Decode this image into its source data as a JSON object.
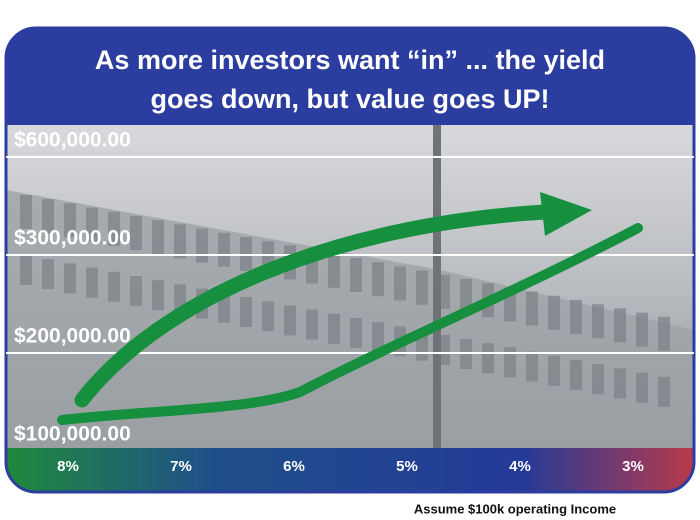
{
  "header": {
    "title_lines": [
      "As more investors want “in” ... the yield",
      "goes down, but value goes UP!"
    ]
  },
  "axis": {
    "y_labels": [
      "$600,000.00",
      "$300,000.00",
      "$200,000.00",
      "$100,000.00"
    ],
    "x_labels": [
      "8%",
      "7%",
      "6%",
      "5%",
      "4%",
      "3%"
    ]
  },
  "footnote": "Assume $100k operating Income"
}
